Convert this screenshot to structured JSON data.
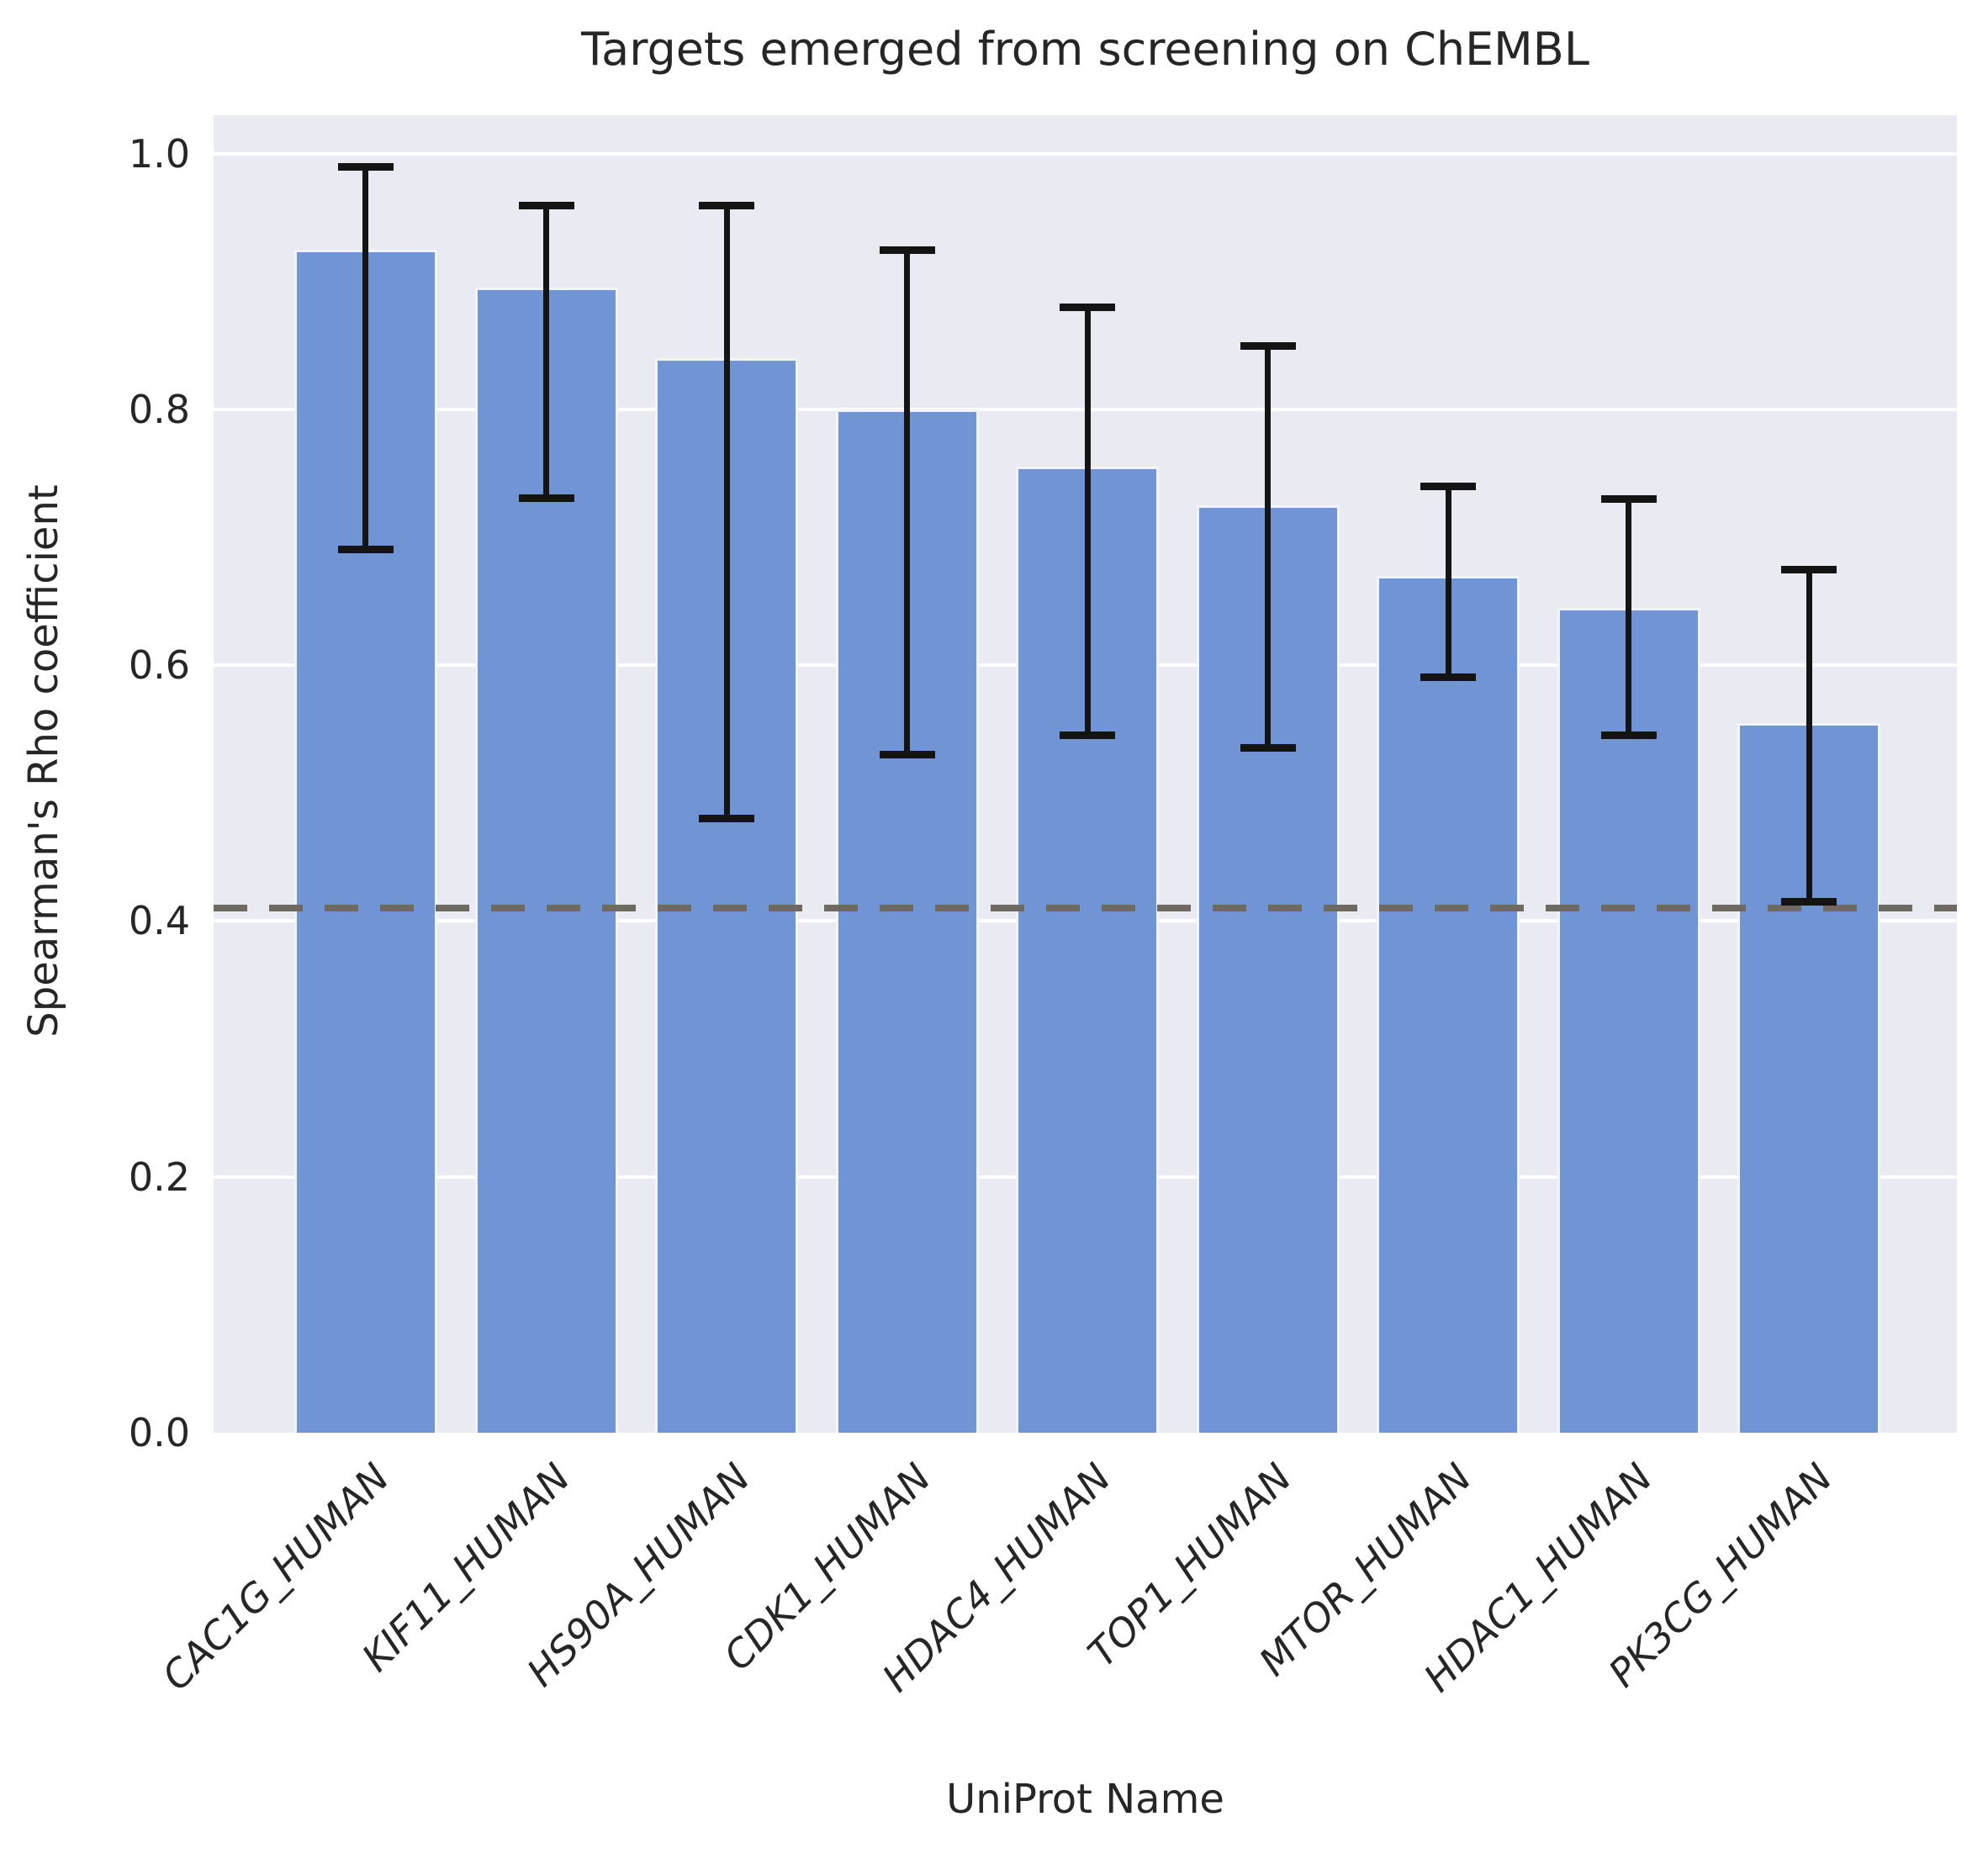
{
  "chart_data": {
    "type": "bar",
    "title": "Targets emerged from screening on ChEMBL",
    "xlabel": "UniProt Name",
    "ylabel": "Spearman's Rho coefficient",
    "categories": [
      "CAC1G_HUMAN",
      "KIF11_HUMAN",
      "HS90A_HUMAN",
      "CDK1_HUMAN",
      "HDAC4_HUMAN",
      "TOP1_HUMAN",
      "MTOR_HUMAN",
      "HDAC1_HUMAN",
      "PK3CG_HUMAN"
    ],
    "values": [
      0.925,
      0.895,
      0.84,
      0.8,
      0.755,
      0.725,
      0.67,
      0.645,
      0.555
    ],
    "error_low": [
      0.69,
      0.73,
      0.48,
      0.53,
      0.545,
      0.535,
      0.59,
      0.545,
      0.415
    ],
    "error_high": [
      0.99,
      0.96,
      0.96,
      0.925,
      0.88,
      0.85,
      0.74,
      0.73,
      0.675
    ],
    "reference_line_y": 0.41,
    "ylim": [
      0,
      1.03
    ],
    "ytick_values": [
      0,
      0.2,
      0.4,
      0.6,
      0.8,
      1.0
    ],
    "ytick_labels": [
      "0.0",
      "0.2",
      "0.4",
      "0.6",
      "0.8",
      "1.0"
    ],
    "grid": "horizontal",
    "legend": "none",
    "colors": {
      "bar_fill": "#7194d4",
      "bar_edge": "#ffffff",
      "plot_background": "#eaeaf2",
      "gridline": "#ffffff",
      "error_bar": "#141414",
      "reference_line": "#6e6a62",
      "text": "#262626"
    }
  }
}
